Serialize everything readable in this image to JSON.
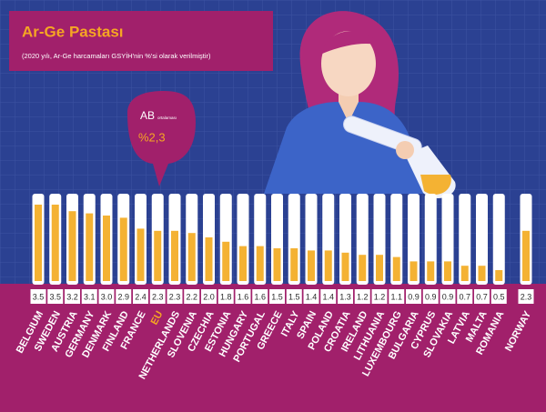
{
  "chart_data": {
    "type": "bar",
    "title": "Ar-Ge Pastası",
    "subtitle": "(2020 yılı, Ar-Ge harcamaları GSYİH'nin %'si olarak verilmiştir)",
    "annotation": {
      "label": "AB",
      "sublabel": "ortalaması",
      "value_text": "%2,3"
    },
    "categories": [
      "BELGIUM",
      "SWEDEN",
      "AUSTRIA",
      "GERMANY",
      "DENMARK",
      "FINLAND",
      "FRANCE",
      "EU",
      "NETHERLANDS",
      "SLOVENIA",
      "CZECHIA",
      "ESTONIA",
      "HUNGARY",
      "PORTUGAL",
      "GREECE",
      "ITALY",
      "SPAIN",
      "POLAND",
      "CROATIA",
      "IRELAND",
      "LITHUANIA",
      "LUXEMBOURG",
      "BULGARIA",
      "CYPRUS",
      "SLOVAKIA",
      "LATVIA",
      "MALTA",
      "ROMANIA",
      "NORWAY"
    ],
    "values": [
      3.5,
      3.5,
      3.2,
      3.1,
      3.0,
      2.9,
      2.4,
      2.3,
      2.3,
      2.2,
      2.0,
      1.8,
      1.6,
      1.6,
      1.5,
      1.5,
      1.4,
      1.4,
      1.3,
      1.2,
      1.2,
      1.1,
      0.9,
      0.9,
      0.9,
      0.7,
      0.7,
      0.5,
      2.3
    ],
    "value_labels": [
      "3.5",
      "3.5",
      "3.2",
      "3.1",
      "3.0",
      "2.9",
      "2.4",
      "2.3",
      "2.3",
      "2.2",
      "2.0",
      "1.8",
      "1.6",
      "1.6",
      "1.5",
      "1.5",
      "1.4",
      "1.4",
      "1.3",
      "1.2",
      "1.2",
      "1.1",
      "0.9",
      "0.9",
      "0.9",
      "0.7",
      "0.7",
      "0.5",
      "2.3"
    ],
    "color": "#f4b233",
    "highlight_category": "EU",
    "highlight_color": "#f5a623",
    "ylim": [
      0,
      4
    ]
  }
}
